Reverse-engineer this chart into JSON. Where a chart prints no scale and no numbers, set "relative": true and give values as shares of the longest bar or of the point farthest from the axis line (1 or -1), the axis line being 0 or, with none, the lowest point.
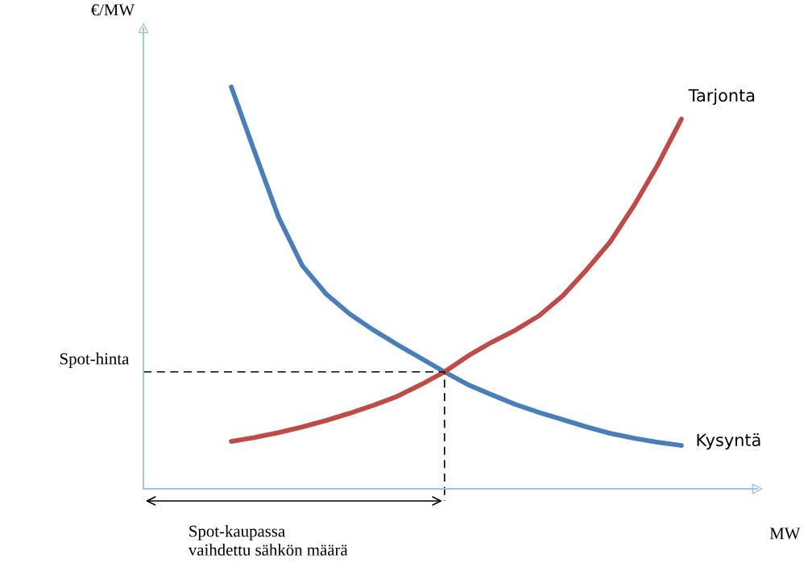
{
  "chart_data": {
    "type": "line",
    "relative": true,
    "tick_labels": false,
    "line_style": "solid",
    "categories": [
      null,
      null,
      null,
      null,
      null,
      null,
      null,
      null,
      null,
      null,
      null,
      null,
      null,
      null,
      null,
      null,
      null,
      null,
      null,
      null
    ],
    "series": [
      {
        "name": "Kysyntä",
        "color": "#4a7ebb",
        "values": [
          1.0,
          0.836,
          0.675,
          0.555,
          0.485,
          0.435,
          0.395,
          0.359,
          0.325,
          0.291,
          0.259,
          0.234,
          0.21,
          0.19,
          0.172,
          0.154,
          0.138,
          0.126,
          0.116,
          0.108
        ]
      },
      {
        "name": "Tarjonta",
        "color": "#be4b48",
        "values": [
          0.118,
          0.128,
          0.14,
          0.154,
          0.17,
          0.188,
          0.208,
          0.23,
          0.259,
          0.291,
          0.331,
          0.365,
          0.395,
          0.431,
          0.481,
          0.545,
          0.615,
          0.705,
          0.806,
          0.92
        ]
      }
    ],
    "ref_lines": [
      {
        "axis": "y",
        "value": 0.291,
        "label": "Spot-hinta",
        "line_style": "dashed",
        "color": "#000000"
      }
    ],
    "annotations": [
      "€/MW",
      "MW",
      "Spot-kaupassa\nvaihdettu sähkön määrä"
    ]
  }
}
